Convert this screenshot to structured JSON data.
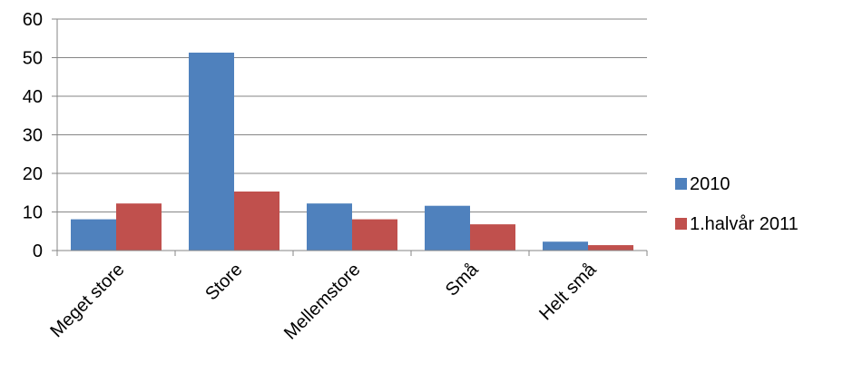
{
  "chart_data": {
    "type": "bar",
    "title": "",
    "xlabel": "",
    "ylabel": "",
    "categories": [
      "Meget store",
      "Store",
      "Mellemstore",
      "Små",
      "Helt små"
    ],
    "series": [
      {
        "name": "2010",
        "values": [
          8.1,
          51.3,
          12.2,
          11.6,
          2.3
        ],
        "color": "#4F81BD"
      },
      {
        "name": "1.halvår 2011",
        "values": [
          12.2,
          15.3,
          8.1,
          6.8,
          1.4
        ],
        "color": "#C0504D"
      }
    ],
    "ylim": [
      0,
      60
    ],
    "yticks": [
      0,
      10,
      20,
      30,
      40,
      50,
      60
    ],
    "grid": true,
    "legend_position": "right"
  }
}
